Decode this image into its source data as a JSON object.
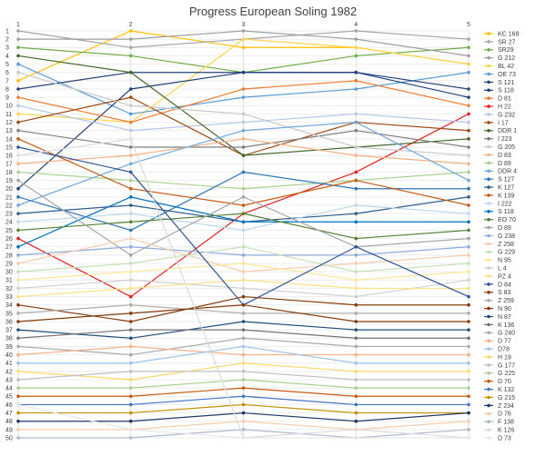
{
  "chart_data": {
    "type": "line",
    "title": "Progress European Soling 1982",
    "x": [
      "1",
      "2",
      "3",
      "4",
      "5"
    ],
    "ylim": [
      1,
      50
    ],
    "y_inverted": true,
    "y_ticks": [
      "1",
      "2",
      "3",
      "4",
      "5",
      "6",
      "7",
      "8",
      "9",
      "10",
      "11",
      "12",
      "13",
      "14",
      "15",
      "16",
      "17",
      "18",
      "19",
      "20",
      "21",
      "22",
      "23",
      "24",
      "25",
      "26",
      "27",
      "28",
      "29",
      "30",
      "31",
      "32",
      "33",
      "34",
      "35",
      "36",
      "37",
      "38",
      "39",
      "40",
      "41",
      "42",
      "43",
      "44",
      "45",
      "46",
      "47",
      "48",
      "49",
      "50"
    ],
    "grid": true,
    "legend_position": "right",
    "series": [
      {
        "name": "KC 168",
        "color": "#FFC000",
        "values": [
          7,
          1,
          3,
          3,
          5
        ]
      },
      {
        "name": "SR 27",
        "color": "#A5A5A5",
        "values": [
          1,
          3,
          2,
          1,
          2
        ]
      },
      {
        "name": "SR29",
        "color": "#70AD47",
        "values": [
          3,
          4,
          6,
          4,
          3
        ]
      },
      {
        "name": "G 212",
        "color": "#9E9E9E",
        "values": [
          2,
          2,
          1,
          2,
          4
        ]
      },
      {
        "name": "BL 42",
        "color": "#FFD34D",
        "values": [
          11,
          12,
          2,
          3,
          5
        ]
      },
      {
        "name": "OE 73",
        "color": "#5B9BD5",
        "values": [
          5,
          11,
          9,
          8,
          6
        ]
      },
      {
        "name": "S 121",
        "color": "#264478",
        "values": [
          8,
          6,
          6,
          6,
          8
        ]
      },
      {
        "name": "S 118",
        "color": "#1F3F7A",
        "values": [
          20,
          8,
          6,
          6,
          9
        ]
      },
      {
        "name": "D 81",
        "color": "#ED7D31",
        "values": [
          9,
          12,
          8,
          7,
          10
        ]
      },
      {
        "name": "H 22",
        "color": "#E0201F",
        "values": [
          26,
          33,
          23,
          18,
          11
        ]
      },
      {
        "name": "G 232",
        "color": "#B4C7E7",
        "values": [
          10,
          13,
          12,
          11,
          12
        ]
      },
      {
        "name": "I 17",
        "color": "#9E480E",
        "values": [
          12,
          9,
          16,
          12,
          13
        ]
      },
      {
        "name": "DDR 1",
        "color": "#43682B",
        "values": [
          4,
          6,
          16,
          15,
          14
        ]
      },
      {
        "name": "I 223",
        "color": "#7F7F7F",
        "values": [
          13,
          15,
          15,
          13,
          15
        ]
      },
      {
        "name": "G 205",
        "color": "#C9C9C9",
        "values": [
          6,
          10,
          11,
          15,
          16
        ]
      },
      {
        "name": "D 83",
        "color": "#F4B183",
        "values": [
          17,
          16,
          14,
          16,
          17
        ]
      },
      {
        "name": "D 89",
        "color": "#A9D18E",
        "values": [
          18,
          19,
          20,
          19,
          18
        ]
      },
      {
        "name": "DDR 4",
        "color": "#6FA8DC",
        "values": [
          22,
          17,
          13,
          12,
          19
        ]
      },
      {
        "name": "S 127",
        "color": "#2E75B6",
        "values": [
          21,
          25,
          18,
          20,
          20
        ]
      },
      {
        "name": "K 127",
        "color": "#2E5C8A",
        "values": [
          23,
          22,
          24,
          23,
          21
        ]
      },
      {
        "name": "K 139",
        "color": "#C55A11",
        "values": [
          14,
          20,
          22,
          19,
          22
        ]
      },
      {
        "name": "I 222",
        "color": "#BDD7EE",
        "values": [
          24,
          23,
          25,
          22,
          23
        ]
      },
      {
        "name": "S 118",
        "color": "#0070C0",
        "values": [
          27,
          21,
          24,
          24,
          24
        ]
      },
      {
        "name": "EO 70",
        "color": "#548235",
        "values": [
          25,
          24,
          23,
          26,
          25
        ]
      },
      {
        "name": "D 89",
        "color": "#A5A5A5",
        "values": [
          19,
          28,
          21,
          27,
          26
        ]
      },
      {
        "name": "G 238",
        "color": "#8FAADC",
        "values": [
          28,
          27,
          28,
          28,
          27
        ]
      },
      {
        "name": "Z 258",
        "color": "#F8CBAD",
        "values": [
          29,
          26,
          30,
          29,
          28
        ]
      },
      {
        "name": "G 229",
        "color": "#C5E0B4",
        "values": [
          30,
          29,
          27,
          30,
          29
        ]
      },
      {
        "name": "N 95",
        "color": "#FFE699",
        "values": [
          31,
          30,
          29,
          31,
          30
        ]
      },
      {
        "name": "L 4",
        "color": "#D0CECE",
        "values": [
          32,
          31,
          32,
          33,
          31
        ]
      },
      {
        "name": "PZ 4",
        "color": "#FFE082",
        "values": [
          33,
          32,
          31,
          32,
          32
        ]
      },
      {
        "name": "D 84",
        "color": "#2F5597",
        "values": [
          15,
          18,
          34,
          27,
          33
        ]
      },
      {
        "name": "S 83",
        "color": "#843C0C",
        "values": [
          34,
          36,
          33,
          34,
          34
        ]
      },
      {
        "name": "Z 259",
        "color": "#AFABAB",
        "values": [
          35,
          34,
          35,
          35,
          35
        ]
      },
      {
        "name": "N 90",
        "color": "#833C0B",
        "values": [
          36,
          35,
          34,
          36,
          36
        ]
      },
      {
        "name": "N 87",
        "color": "#1F4E79",
        "values": [
          37,
          38,
          36,
          37,
          37
        ]
      },
      {
        "name": "K 136",
        "color": "#767171",
        "values": [
          38,
          37,
          37,
          38,
          38
        ]
      },
      {
        "name": "G 240",
        "color": "#A9A9A9",
        "values": [
          39,
          40,
          38,
          39,
          39
        ]
      },
      {
        "name": "D 77",
        "color": "#F4B084",
        "values": [
          40,
          39,
          40,
          40,
          40
        ]
      },
      {
        "name": "D78",
        "color": "#9DC3E6",
        "values": [
          41,
          41,
          39,
          41,
          41
        ]
      },
      {
        "name": "H 19",
        "color": "#FFD966",
        "values": [
          42,
          43,
          41,
          42,
          42
        ]
      },
      {
        "name": "G 177",
        "color": "#BFBFBF",
        "values": [
          43,
          42,
          42,
          43,
          43
        ]
      },
      {
        "name": "G 225",
        "color": "#A8D08D",
        "values": [
          44,
          44,
          43,
          44,
          44
        ]
      },
      {
        "name": "D 70",
        "color": "#C55A11",
        "values": [
          45,
          45,
          44,
          45,
          45
        ]
      },
      {
        "name": "K 132",
        "color": "#4472C4",
        "values": [
          46,
          46,
          45,
          46,
          46
        ]
      },
      {
        "name": "G 215",
        "color": "#BF9000",
        "values": [
          47,
          47,
          46,
          47,
          47
        ]
      },
      {
        "name": "Z 234",
        "color": "#203864",
        "values": [
          48,
          48,
          47,
          48,
          47
        ]
      },
      {
        "name": "D 76",
        "color": "#F8CBAD",
        "values": [
          49,
          49,
          48,
          49,
          48
        ]
      },
      {
        "name": "F 138",
        "color": "#ACB9CA",
        "values": [
          50,
          50,
          49,
          50,
          49
        ]
      },
      {
        "name": "K 126",
        "color": "#DBDBDB",
        "values": [
          16,
          14,
          50,
          49,
          50
        ]
      },
      {
        "name": "D 73",
        "color": "#E7E6E6",
        "values": [
          46,
          49,
          50,
          50,
          50
        ]
      }
    ]
  }
}
